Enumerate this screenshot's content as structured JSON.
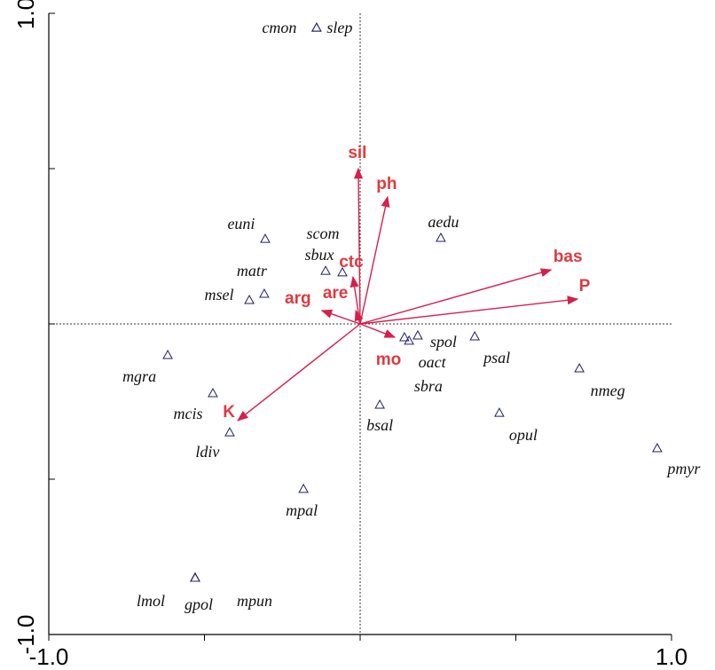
{
  "chart_data": {
    "type": "scatter",
    "xlim": [
      -1,
      1
    ],
    "ylim": [
      -1,
      1
    ],
    "xticks": [
      {
        "value": -1,
        "label": "-1.0"
      },
      {
        "value": 1,
        "label": "1.0"
      }
    ],
    "yticks": [
      {
        "value": 1,
        "label": "1.0"
      },
      {
        "value": -1,
        "label": "-1.0"
      }
    ],
    "xminorticks": [
      -0.5,
      0,
      0.5
    ],
    "yminorticks": [
      0.5,
      0,
      -0.5
    ],
    "points": {
      "color": "#1f1f6e",
      "labels": [
        "cmon",
        "slep",
        "euni",
        "aedu",
        "scom",
        "sbux",
        "matr",
        "msel",
        "mgra",
        "mcis",
        "ldiv",
        "mpal",
        "lmol",
        "gpol",
        "mpun",
        "spol",
        "oact",
        "sbra",
        "psal",
        "bsal",
        "opul",
        "nmeg",
        "pmyr"
      ],
      "x": [
        -0.14,
        -0.14,
        -0.305,
        0.259,
        -0.111,
        -0.057,
        -0.308,
        -0.356,
        -0.618,
        -0.473,
        -0.419,
        -0.182,
        -0.53,
        -0.53,
        -0.53,
        0.185,
        0.157,
        0.142,
        0.368,
        0.063,
        0.447,
        0.704,
        0.954
      ],
      "y": [
        0.954,
        0.954,
        0.274,
        0.277,
        0.171,
        0.166,
        0.097,
        0.077,
        -0.1,
        -0.223,
        -0.349,
        -0.531,
        -0.817,
        -0.817,
        -0.817,
        -0.037,
        -0.054,
        -0.043,
        -0.04,
        -0.26,
        -0.286,
        -0.143,
        -0.4
      ]
    },
    "arrows": {
      "color": "#d81e4a",
      "label_color": "#e0393e",
      "labels": [
        "sil",
        "ph",
        "ctc",
        "are",
        "arg",
        "bas",
        "P",
        "mo",
        "K"
      ],
      "x": [
        -0.006,
        0.088,
        -0.023,
        -0.014,
        -0.123,
        0.613,
        0.698,
        0.111,
        -0.393
      ],
      "y": [
        0.5,
        0.409,
        0.151,
        0.043,
        0.043,
        0.174,
        0.08,
        -0.043,
        -0.311
      ]
    }
  }
}
